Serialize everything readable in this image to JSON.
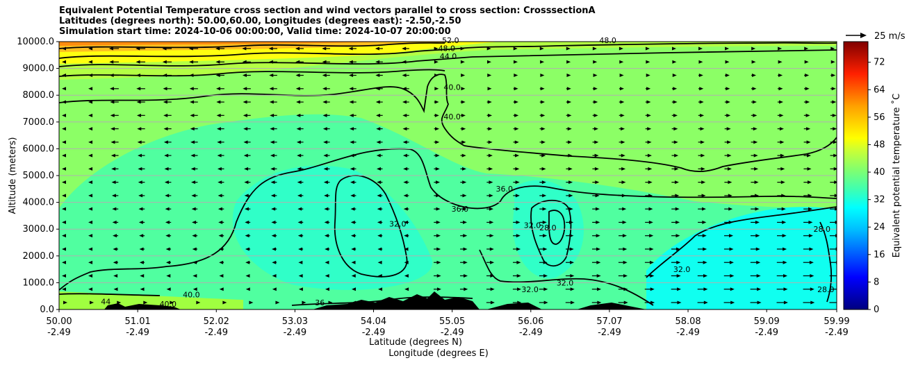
{
  "chart_data": {
    "type": "heatmap",
    "title": [
      "Equivalent Potential Temperature cross section and wind vectors parallel to cross section: CrosssectionA",
      "Latitudes (degrees north): 50.00,60.00, Longitudes (degrees east): -2.50,-2.50",
      "Simulation start time: 2024-10-06 00:00:00, Valid time: 2024-10-07 20:00:00"
    ],
    "xlabel": "Latitude (degrees N)",
    "xlabel2": "Longitude (degrees E)",
    "ylabel": "Altitude (meters)",
    "x_ticks": [
      {
        "lat": "50.00",
        "lon": "-2.49",
        "value": 50.0
      },
      {
        "lat": "51.01",
        "lon": "-2.49",
        "value": 51.01
      },
      {
        "lat": "52.02",
        "lon": "-2.49",
        "value": 52.02
      },
      {
        "lat": "53.03",
        "lon": "-2.49",
        "value": 53.03
      },
      {
        "lat": "54.04",
        "lon": "-2.49",
        "value": 54.04
      },
      {
        "lat": "55.05",
        "lon": "-2.49",
        "value": 55.05
      },
      {
        "lat": "56.06",
        "lon": "-2.49",
        "value": 56.06
      },
      {
        "lat": "57.07",
        "lon": "-2.49",
        "value": 57.07
      },
      {
        "lat": "58.08",
        "lon": "-2.49",
        "value": 58.08
      },
      {
        "lat": "59.09",
        "lon": "-2.49",
        "value": 59.09
      },
      {
        "lat": "59.99",
        "lon": "-2.49",
        "value": 59.99
      }
    ],
    "xlim": [
      50.0,
      59.99
    ],
    "y_ticks": [
      "0.0",
      "1000.0",
      "2000.0",
      "3000.0",
      "4000.0",
      "5000.0",
      "6000.0",
      "7000.0",
      "8000.0",
      "9000.0",
      "10000.0"
    ],
    "ylim": [
      0,
      10000
    ],
    "grid": "horizontal",
    "colorbar": {
      "label": "Equivalent potential temperature ˚C",
      "ticks": [
        "0",
        "8",
        "16",
        "24",
        "32",
        "40",
        "48",
        "56",
        "64",
        "72"
      ],
      "range": [
        0,
        78
      ]
    },
    "quiver_key": {
      "label": "25 m/s"
    },
    "contour_labels": [
      {
        "text": "52.0",
        "lat": 55.03,
        "alt": 9950
      },
      {
        "text": "48.0",
        "lat": 54.98,
        "alt": 9650
      },
      {
        "text": "44.0",
        "lat": 55.0,
        "alt": 9350
      },
      {
        "text": "40.0",
        "lat": 55.05,
        "alt": 8200
      },
      {
        "text": "40.0",
        "lat": 55.05,
        "alt": 7100
      },
      {
        "text": "48.0",
        "lat": 57.05,
        "alt": 9950
      },
      {
        "text": "36.0",
        "lat": 55.72,
        "alt": 4400
      },
      {
        "text": "36.0",
        "lat": 55.15,
        "alt": 3650
      },
      {
        "text": "32.0",
        "lat": 54.35,
        "alt": 3100
      },
      {
        "text": "32.0",
        "lat": 56.08,
        "alt": 3050
      },
      {
        "text": "28.0",
        "lat": 56.28,
        "alt": 2950
      },
      {
        "text": "32.0",
        "lat": 58.0,
        "alt": 1400
      },
      {
        "text": "32.0",
        "lat": 56.5,
        "alt": 900
      },
      {
        "text": "32.0",
        "lat": 56.05,
        "alt": 650
      },
      {
        "text": "40.0",
        "lat": 51.7,
        "alt": 450
      },
      {
        "text": "40.0",
        "lat": 51.4,
        "alt": 100
      },
      {
        "text": "44",
        "lat": 50.6,
        "alt": 200
      },
      {
        "text": "36",
        "lat": 53.35,
        "alt": 150
      },
      {
        "text": "28.0",
        "lat": 59.8,
        "alt": 2900
      },
      {
        "text": "28.0",
        "lat": 59.85,
        "alt": 650
      }
    ]
  }
}
